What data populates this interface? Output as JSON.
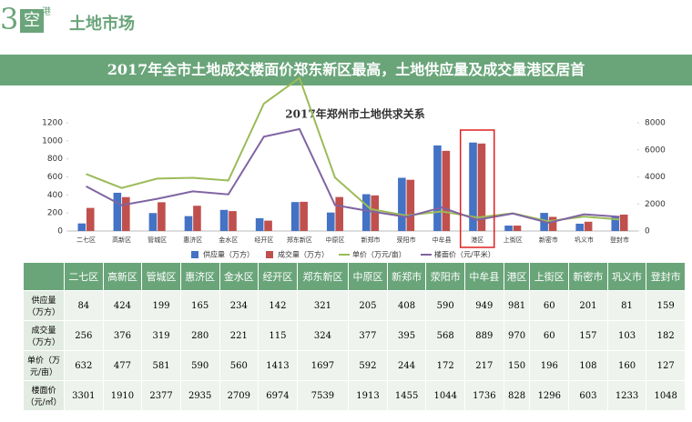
{
  "header": {
    "logo_number": "3",
    "logo_main": "空",
    "logo_sup": "港",
    "section": "土地市场"
  },
  "banner": "2017年全市土地成交楼面价郑东新区最高，土地供应量及成交量港区居首",
  "chart_data": {
    "type": "bar",
    "title": "2017年郑州市土地供求关系",
    "categories": [
      "二七区",
      "高新区",
      "管城区",
      "惠济区",
      "金水区",
      "经开区",
      "郑东新区",
      "中原区",
      "新郑市",
      "荥阳市",
      "中牟县",
      "港区",
      "上街区",
      "新密市",
      "巩义市",
      "登封市"
    ],
    "series": [
      {
        "name": "供应量（万方）",
        "type": "bar",
        "color": "#4472c4",
        "values": [
          84,
          424,
          199,
          165,
          234,
          142,
          321,
          205,
          408,
          590,
          949,
          981,
          60,
          201,
          81,
          159
        ]
      },
      {
        "name": "成交量（万方）",
        "type": "bar",
        "color": "#c0504d",
        "values": [
          256,
          376,
          319,
          280,
          221,
          115,
          324,
          377,
          395,
          568,
          889,
          970,
          60,
          157,
          103,
          182
        ]
      },
      {
        "name": "单价（万元/亩）",
        "type": "line",
        "color": "#9bbb59",
        "values": [
          632,
          477,
          581,
          590,
          560,
          1413,
          1697,
          592,
          244,
          172,
          217,
          150,
          196,
          108,
          160,
          127
        ]
      },
      {
        "name": "楼面价（元/平米）",
        "type": "line",
        "color": "#8064a2",
        "axis": "y2",
        "values": [
          3301,
          1910,
          2377,
          2935,
          2709,
          6974,
          7539,
          1913,
          1455,
          1044,
          1736,
          828,
          1296,
          603,
          1233,
          1048
        ]
      }
    ],
    "ylim": [
      0,
      1200
    ],
    "yticks": [
      0,
      200,
      400,
      600,
      800,
      1000,
      1200
    ],
    "y2lim": [
      0,
      8000
    ],
    "y2ticks": [
      0,
      2000,
      4000,
      6000,
      8000
    ]
  },
  "table": {
    "row_labels": [
      "供应量（万方）",
      "成交量（万方）",
      "单价（万元/亩）",
      "楼面价（元/㎡）"
    ]
  }
}
